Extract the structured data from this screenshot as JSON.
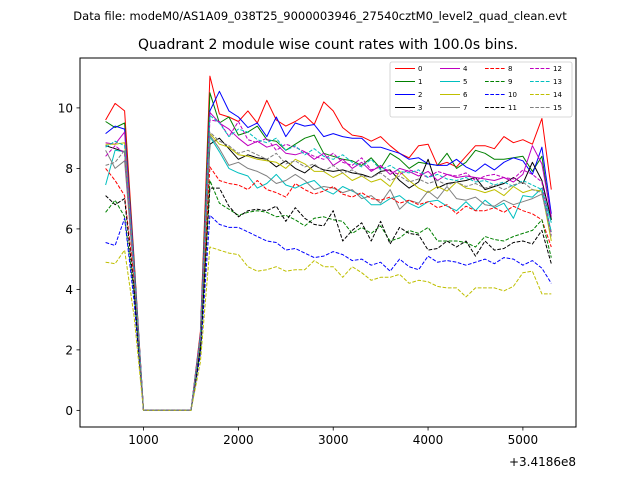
{
  "header": {
    "file_title": "Data file: modeM0/AS1A09_038T25_9000003946_27540cztM0_level2_quad_clean.evt"
  },
  "chart_data": {
    "type": "line",
    "title": "Quadrant 2 module wise count rates with 100.0s bins.",
    "xlabel": "",
    "ylabel": "",
    "x_offset_label": "+3.4186e8",
    "xlim": [
      330,
      5560
    ],
    "ylim": [
      -0.55,
      11.65
    ],
    "xticks": [
      1000,
      2000,
      3000,
      4000,
      5000
    ],
    "yticks": [
      0,
      2,
      4,
      6,
      8,
      10
    ],
    "legend_position": "top-right",
    "x": [
      600,
      700,
      800,
      900,
      1000,
      1100,
      1200,
      1300,
      1400,
      1500,
      1600,
      1700,
      1800,
      1900,
      2000,
      2100,
      2200,
      2300,
      2400,
      2500,
      2600,
      2700,
      2800,
      2900,
      3000,
      3100,
      3200,
      3300,
      3400,
      3500,
      3600,
      3700,
      3800,
      3900,
      4000,
      4100,
      4200,
      4300,
      4400,
      4500,
      4600,
      4700,
      4800,
      4900,
      5000,
      5100,
      5200,
      5300
    ],
    "series": [
      {
        "name": "0",
        "color": "#ff0000",
        "dash": "solid",
        "values": [
          9.6,
          10.15,
          9.9,
          5.0,
          0.0,
          0.0,
          0.0,
          0.0,
          0.0,
          0.0,
          2.6,
          11.05,
          9.8,
          9.7,
          9.55,
          9.9,
          9.5,
          10.25,
          9.6,
          9.4,
          9.55,
          9.75,
          9.45,
          10.2,
          9.9,
          9.35,
          9.1,
          9.05,
          8.9,
          9.05,
          8.75,
          8.5,
          8.35,
          8.75,
          8.8,
          8.1,
          8.2,
          8.05,
          8.4,
          8.75,
          8.75,
          8.65,
          9.05,
          8.85,
          8.95,
          8.8,
          9.65,
          7.3
        ]
      },
      {
        "name": "1",
        "color": "#008000",
        "dash": "solid",
        "values": [
          9.55,
          9.35,
          9.5,
          4.9,
          0.0,
          0.0,
          0.0,
          0.0,
          0.0,
          0.0,
          2.5,
          10.5,
          9.5,
          9.7,
          9.1,
          9.2,
          9.4,
          8.95,
          8.9,
          8.6,
          8.8,
          9.0,
          9.1,
          8.5,
          8.4,
          8.3,
          8.25,
          8.1,
          8.35,
          8.0,
          8.5,
          8.3,
          8.0,
          8.2,
          8.15,
          8.1,
          8.5,
          8.0,
          8.2,
          8.6,
          8.5,
          8.3,
          8.3,
          8.35,
          8.4,
          7.9,
          8.4,
          6.3
        ]
      },
      {
        "name": "2",
        "color": "#0000ff",
        "dash": "solid",
        "values": [
          9.15,
          9.4,
          9.3,
          4.8,
          0.0,
          0.0,
          0.0,
          0.0,
          0.0,
          0.0,
          2.45,
          9.9,
          10.55,
          9.9,
          9.7,
          9.35,
          9.5,
          9.05,
          9.7,
          9.05,
          9.5,
          9.4,
          9.45,
          9.05,
          9.15,
          9.05,
          9.0,
          9.0,
          8.7,
          8.7,
          8.6,
          8.5,
          8.3,
          8.35,
          8.15,
          8.1,
          8.1,
          8.3,
          8.05,
          7.9,
          8.15,
          7.95,
          8.2,
          8.35,
          8.25,
          7.8,
          8.7,
          6.5
        ]
      },
      {
        "name": "3",
        "color": "#000000",
        "dash": "solid",
        "values": [
          8.75,
          8.65,
          8.55,
          4.6,
          0.0,
          0.0,
          0.0,
          0.0,
          0.0,
          0.0,
          2.3,
          8.8,
          9.0,
          8.65,
          8.3,
          8.45,
          8.35,
          8.3,
          8.05,
          8.25,
          8.0,
          7.85,
          8.1,
          7.95,
          7.9,
          7.95,
          7.85,
          7.8,
          7.7,
          7.9,
          7.95,
          7.6,
          7.35,
          7.55,
          8.3,
          7.35,
          7.5,
          7.55,
          7.6,
          7.7,
          7.3,
          7.4,
          7.5,
          7.7,
          7.5,
          8.2,
          7.6,
          6.3
        ]
      },
      {
        "name": "4",
        "color": "#bf00bf",
        "dash": "solid",
        "values": [
          8.85,
          8.8,
          9.2,
          4.7,
          0.0,
          0.0,
          0.0,
          0.0,
          0.0,
          0.0,
          2.45,
          9.85,
          9.5,
          9.3,
          9.0,
          8.75,
          8.9,
          8.7,
          8.8,
          8.5,
          8.45,
          8.55,
          8.3,
          8.5,
          8.1,
          8.3,
          8.0,
          8.2,
          7.9,
          8.1,
          7.8,
          8.0,
          7.9,
          7.75,
          7.9,
          7.6,
          7.8,
          7.7,
          7.75,
          7.7,
          7.65,
          7.6,
          7.7,
          7.55,
          7.8,
          8.75,
          8.15,
          6.4
        ]
      },
      {
        "name": "5",
        "color": "#00bfbf",
        "dash": "solid",
        "values": [
          7.45,
          8.6,
          8.55,
          4.5,
          0.0,
          0.0,
          0.0,
          0.0,
          0.0,
          0.0,
          2.35,
          9.05,
          8.55,
          8.0,
          7.85,
          7.75,
          7.35,
          7.5,
          7.8,
          7.45,
          7.35,
          7.5,
          7.6,
          7.3,
          7.15,
          7.4,
          7.25,
          7.1,
          6.8,
          6.8,
          7.0,
          7.1,
          6.85,
          6.7,
          6.9,
          6.95,
          6.75,
          6.6,
          6.9,
          6.6,
          6.95,
          6.7,
          6.85,
          6.35,
          7.1,
          7.05,
          7.35,
          6.2
        ]
      },
      {
        "name": "6",
        "color": "#bfbf00",
        "dash": "solid",
        "values": [
          8.8,
          8.8,
          8.85,
          4.6,
          0.0,
          0.0,
          0.0,
          0.0,
          0.0,
          0.0,
          2.3,
          9.15,
          8.8,
          8.7,
          8.45,
          8.4,
          8.3,
          8.25,
          8.2,
          8.0,
          8.3,
          8.15,
          7.9,
          7.9,
          7.7,
          7.85,
          7.6,
          7.75,
          7.55,
          7.65,
          7.4,
          7.9,
          7.6,
          7.35,
          7.2,
          7.4,
          7.25,
          7.55,
          7.35,
          7.3,
          7.2,
          7.3,
          7.1,
          7.4,
          7.2,
          7.3,
          7.25,
          5.6
        ]
      },
      {
        "name": "7",
        "color": "#808080",
        "dash": "solid",
        "values": [
          8.6,
          8.0,
          8.25,
          4.4,
          0.0,
          0.0,
          0.0,
          0.0,
          0.0,
          0.0,
          2.3,
          9.1,
          8.65,
          8.1,
          8.2,
          8.0,
          7.9,
          7.75,
          7.5,
          7.6,
          7.8,
          7.6,
          7.3,
          7.4,
          7.35,
          7.2,
          7.3,
          7.0,
          7.1,
          6.85,
          7.3,
          6.65,
          6.95,
          6.85,
          7.25,
          7.0,
          7.4,
          7.0,
          6.95,
          7.05,
          6.8,
          6.75,
          6.95,
          6.8,
          6.9,
          7.0,
          7.15,
          5.9
        ]
      },
      {
        "name": "8",
        "color": "#ff0000",
        "dash": "dashed",
        "values": [
          8.0,
          7.6,
          7.1,
          4.3,
          0.0,
          0.0,
          0.0,
          0.0,
          0.0,
          0.0,
          2.25,
          8.05,
          7.6,
          7.5,
          7.45,
          7.3,
          7.6,
          7.3,
          7.2,
          7.05,
          7.5,
          7.3,
          7.15,
          7.25,
          7.4,
          7.15,
          7.05,
          7.2,
          7.0,
          6.95,
          7.05,
          6.85,
          6.95,
          6.8,
          6.9,
          6.7,
          6.8,
          6.5,
          6.75,
          6.6,
          6.6,
          6.7,
          6.55,
          6.75,
          6.6,
          6.5,
          6.3,
          5.4
        ]
      },
      {
        "name": "9",
        "color": "#008000",
        "dash": "dashed",
        "values": [
          6.55,
          6.95,
          6.4,
          3.9,
          0.0,
          0.0,
          0.0,
          0.0,
          0.0,
          0.0,
          2.0,
          7.6,
          6.85,
          6.65,
          6.45,
          6.55,
          6.6,
          6.55,
          6.4,
          6.45,
          6.3,
          6.1,
          6.35,
          6.4,
          6.3,
          6.25,
          5.85,
          6.05,
          5.85,
          6.1,
          5.6,
          5.7,
          5.95,
          5.85,
          6.05,
          5.6,
          5.6,
          5.6,
          5.55,
          5.4,
          5.75,
          5.65,
          5.6,
          5.75,
          5.85,
          5.95,
          6.3,
          5.05
        ]
      },
      {
        "name": "10",
        "color": "#0000ff",
        "dash": "dashed",
        "values": [
          5.55,
          5.45,
          6.35,
          3.6,
          0.0,
          0.0,
          0.0,
          0.0,
          0.0,
          0.0,
          1.85,
          6.45,
          6.15,
          6.05,
          6.05,
          5.9,
          5.75,
          5.6,
          5.55,
          5.3,
          5.35,
          5.2,
          5.05,
          5.1,
          5.25,
          5.15,
          4.95,
          5.0,
          4.8,
          4.9,
          4.6,
          5.0,
          4.75,
          4.65,
          5.1,
          4.9,
          4.95,
          4.9,
          4.8,
          4.9,
          5.0,
          4.85,
          5.05,
          5.0,
          4.8,
          4.95,
          4.7,
          4.2
        ]
      },
      {
        "name": "11",
        "color": "#000000",
        "dash": "dashed",
        "values": [
          7.1,
          6.8,
          7.0,
          4.0,
          0.0,
          0.0,
          0.0,
          0.0,
          0.0,
          0.0,
          2.05,
          7.35,
          7.35,
          6.75,
          6.4,
          6.6,
          6.65,
          6.6,
          6.75,
          6.25,
          6.7,
          6.35,
          6.15,
          6.1,
          6.6,
          5.6,
          5.95,
          6.2,
          5.6,
          6.25,
          5.5,
          6.05,
          5.85,
          5.8,
          5.3,
          5.35,
          5.6,
          5.4,
          5.6,
          5.1,
          5.6,
          5.3,
          5.35,
          5.55,
          5.6,
          5.5,
          5.95,
          4.85
        ]
      },
      {
        "name": "12",
        "color": "#bf00bf",
        "dash": "dashed",
        "values": [
          8.4,
          8.75,
          8.5,
          4.6,
          0.0,
          0.0,
          0.0,
          0.0,
          0.0,
          0.0,
          2.4,
          9.6,
          9.55,
          9.05,
          9.55,
          8.95,
          8.85,
          9.0,
          8.6,
          8.8,
          8.7,
          8.55,
          8.4,
          8.3,
          8.5,
          8.2,
          8.1,
          8.35,
          7.95,
          8.05,
          7.9,
          7.8,
          7.95,
          7.85,
          7.7,
          7.9,
          7.8,
          7.75,
          7.85,
          7.6,
          7.75,
          7.8,
          7.7,
          7.65,
          7.95,
          7.8,
          7.55,
          5.8
        ]
      },
      {
        "name": "13",
        "color": "#00bfbf",
        "dash": "dashed",
        "values": [
          8.7,
          8.9,
          8.75,
          4.7,
          0.0,
          0.0,
          0.0,
          0.0,
          0.0,
          0.0,
          2.45,
          9.75,
          9.5,
          9.05,
          9.3,
          9.2,
          8.95,
          8.85,
          9.0,
          8.6,
          8.75,
          8.45,
          8.65,
          8.4,
          8.3,
          8.45,
          8.2,
          8.05,
          8.3,
          7.95,
          8.1,
          7.9,
          7.85,
          7.95,
          7.7,
          7.8,
          7.65,
          7.6,
          7.7,
          7.55,
          7.6,
          7.45,
          7.55,
          7.4,
          7.6,
          7.45,
          7.3,
          5.9
        ]
      },
      {
        "name": "14",
        "color": "#bfbf00",
        "dash": "dashed",
        "values": [
          4.9,
          4.85,
          5.3,
          3.1,
          0.0,
          0.0,
          0.0,
          0.0,
          0.0,
          0.0,
          1.6,
          5.4,
          5.3,
          5.2,
          5.15,
          4.75,
          4.6,
          4.65,
          4.75,
          4.6,
          4.65,
          4.65,
          4.95,
          4.75,
          4.75,
          4.4,
          4.75,
          4.55,
          4.3,
          4.4,
          4.4,
          4.5,
          4.2,
          4.3,
          4.25,
          4.1,
          4.05,
          4.05,
          3.75,
          4.05,
          4.05,
          4.05,
          3.95,
          4.1,
          4.55,
          4.6,
          3.85,
          3.85
        ]
      },
      {
        "name": "15",
        "color": "#808080",
        "dash": "dashed",
        "values": [
          8.1,
          8.2,
          8.6,
          4.5,
          0.0,
          0.0,
          0.0,
          0.0,
          0.0,
          0.0,
          2.35,
          9.2,
          8.9,
          8.75,
          8.5,
          8.6,
          8.45,
          8.3,
          8.5,
          8.15,
          8.25,
          8.05,
          8.15,
          7.9,
          8.1,
          7.85,
          7.95,
          7.75,
          7.7,
          7.85,
          7.6,
          7.75,
          7.55,
          7.65,
          7.5,
          7.6,
          7.45,
          7.55,
          7.4,
          7.5,
          7.35,
          7.45,
          7.3,
          7.45,
          7.55,
          7.3,
          7.2,
          5.75
        ]
      }
    ]
  }
}
